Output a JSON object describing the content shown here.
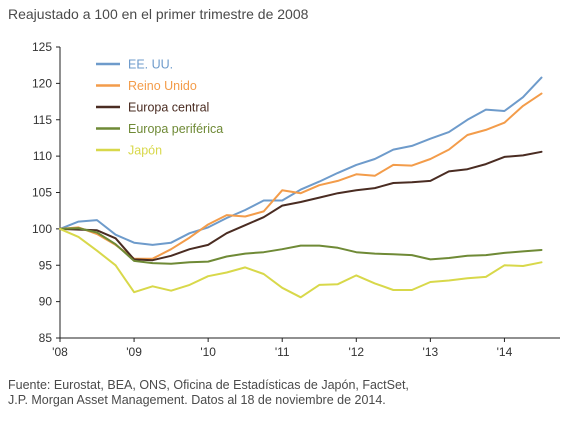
{
  "chart_data": {
    "type": "line",
    "subtitle": "Reajustado a 100 en el primer trimestre de 2008",
    "xlabel": "",
    "ylabel": "",
    "x_start": 2008.0,
    "x_end": 2014.75,
    "x_ticks": [
      {
        "value": 2008,
        "label": "'08"
      },
      {
        "value": 2009,
        "label": "'09"
      },
      {
        "value": 2010,
        "label": "'10"
      },
      {
        "value": 2011,
        "label": "'11"
      },
      {
        "value": 2012,
        "label": "'12"
      },
      {
        "value": 2013,
        "label": "'13"
      },
      {
        "value": 2014,
        "label": "'14"
      }
    ],
    "ylim": [
      85,
      125
    ],
    "y_ticks": [
      85,
      90,
      95,
      100,
      105,
      110,
      115,
      120,
      125
    ],
    "grid": false,
    "legend_position": "top-left",
    "x": [
      2008.0,
      2008.25,
      2008.5,
      2008.75,
      2009.0,
      2009.25,
      2009.5,
      2009.75,
      2010.0,
      2010.25,
      2010.5,
      2010.75,
      2011.0,
      2011.25,
      2011.5,
      2011.75,
      2012.0,
      2012.25,
      2012.5,
      2012.75,
      2013.0,
      2013.25,
      2013.5,
      2013.75,
      2014.0,
      2014.25,
      2014.5
    ],
    "series": [
      {
        "name": "EE. UU.",
        "color": "#6e9bcb",
        "values": [
          100,
          101.0,
          101.2,
          99.2,
          98.1,
          97.8,
          98.1,
          99.4,
          100.2,
          101.5,
          102.6,
          103.9,
          103.9,
          105.4,
          106.5,
          107.7,
          108.8,
          109.6,
          110.9,
          111.4,
          112.4,
          113.3,
          115.0,
          116.4,
          116.2,
          118.1,
          120.8
        ]
      },
      {
        "name": "Reino Unido",
        "color": "#f39c4a",
        "values": [
          100,
          100.2,
          99.3,
          97.8,
          95.9,
          95.9,
          97.2,
          98.8,
          100.6,
          101.9,
          101.7,
          102.4,
          105.3,
          104.9,
          106.0,
          106.6,
          107.5,
          107.3,
          108.8,
          108.7,
          109.6,
          110.9,
          112.9,
          113.6,
          114.6,
          116.9,
          118.6
        ]
      },
      {
        "name": "Europa central",
        "color": "#4a2c22",
        "values": [
          100,
          99.9,
          99.8,
          98.7,
          95.8,
          95.7,
          96.3,
          97.2,
          97.8,
          99.4,
          100.5,
          101.6,
          103.2,
          103.7,
          104.3,
          104.9,
          105.3,
          105.6,
          106.3,
          106.4,
          106.6,
          107.9,
          108.2,
          108.9,
          109.9,
          110.1,
          110.6
        ]
      },
      {
        "name": "Europa periférica",
        "color": "#6f8a36",
        "values": [
          100,
          100.1,
          99.5,
          97.9,
          95.6,
          95.3,
          95.2,
          95.4,
          95.5,
          96.2,
          96.6,
          96.8,
          97.2,
          97.7,
          97.7,
          97.4,
          96.8,
          96.6,
          96.5,
          96.4,
          95.8,
          96.0,
          96.3,
          96.4,
          96.7,
          96.9,
          97.1
        ]
      },
      {
        "name": "Japón",
        "color": "#d8d84a",
        "values": [
          100,
          98.9,
          97.0,
          95.0,
          91.3,
          92.1,
          91.5,
          92.3,
          93.5,
          94.0,
          94.7,
          93.8,
          91.9,
          90.6,
          92.3,
          92.4,
          93.6,
          92.5,
          91.6,
          91.6,
          92.7,
          92.9,
          93.2,
          93.4,
          95.0,
          94.9,
          95.4
        ]
      }
    ]
  },
  "source": {
    "line1": "Fuente: Eurostat, BEA, ONS, Oficina de Estadísticas de Japón, FactSet,",
    "line2": "J.P. Morgan Asset Management. Datos al 18 de noviembre de 2014."
  }
}
